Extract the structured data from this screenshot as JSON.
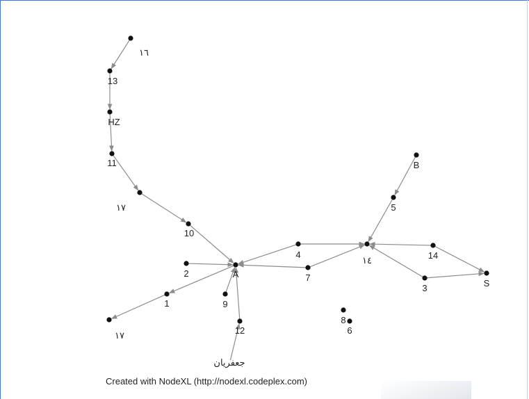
{
  "footer": {
    "text": "Created with NodeXL (http://nodexl.codeplex.com)"
  },
  "graph": {
    "nodes": [
      {
        "id": "n16",
        "label": "١٦"
      },
      {
        "id": "n13",
        "label": "13"
      },
      {
        "id": "nHZ",
        "label": "HZ"
      },
      {
        "id": "n11",
        "label": "11"
      },
      {
        "id": "n17a",
        "label": "١٧"
      },
      {
        "id": "n10",
        "label": "10"
      },
      {
        "id": "nA",
        "label": "A"
      },
      {
        "id": "n2",
        "label": "2"
      },
      {
        "id": "n1",
        "label": "1"
      },
      {
        "id": "n17b",
        "label": "١٧"
      },
      {
        "id": "n9",
        "label": "9"
      },
      {
        "id": "n12",
        "label": "12"
      },
      {
        "id": "njafarian",
        "label": "جعفریان"
      },
      {
        "id": "n4",
        "label": "4"
      },
      {
        "id": "n7",
        "label": "7"
      },
      {
        "id": "n14ar",
        "label": "١٤"
      },
      {
        "id": "nB",
        "label": "B"
      },
      {
        "id": "n5",
        "label": "5"
      },
      {
        "id": "n14",
        "label": "14"
      },
      {
        "id": "nS",
        "label": "S"
      },
      {
        "id": "n3",
        "label": "3"
      },
      {
        "id": "n8",
        "label": "8"
      },
      {
        "id": "n6",
        "label": "6"
      }
    ],
    "edges": [
      {
        "from": "n16",
        "to": "n13"
      },
      {
        "from": "n13",
        "to": "nHZ"
      },
      {
        "from": "nHZ",
        "to": "n11"
      },
      {
        "from": "n11",
        "to": "n17a"
      },
      {
        "from": "n17a",
        "to": "n10"
      },
      {
        "from": "n10",
        "to": "nA"
      },
      {
        "from": "n2",
        "to": "nA"
      },
      {
        "from": "nA",
        "to": "n1"
      },
      {
        "from": "n1",
        "to": "n17b"
      },
      {
        "from": "n9",
        "to": "nA"
      },
      {
        "from": "njafarian",
        "to": "n12"
      },
      {
        "from": "n12",
        "to": "nA"
      },
      {
        "from": "n4",
        "to": "nA"
      },
      {
        "from": "n4",
        "to": "n14ar"
      },
      {
        "from": "n7",
        "to": "nA"
      },
      {
        "from": "n7",
        "to": "n14ar"
      },
      {
        "from": "nB",
        "to": "n5"
      },
      {
        "from": "n5",
        "to": "n14ar"
      },
      {
        "from": "n14",
        "to": "n14ar"
      },
      {
        "from": "n14",
        "to": "nS"
      },
      {
        "from": "n3",
        "to": "nS"
      },
      {
        "from": "n3",
        "to": "n14ar"
      }
    ]
  }
}
